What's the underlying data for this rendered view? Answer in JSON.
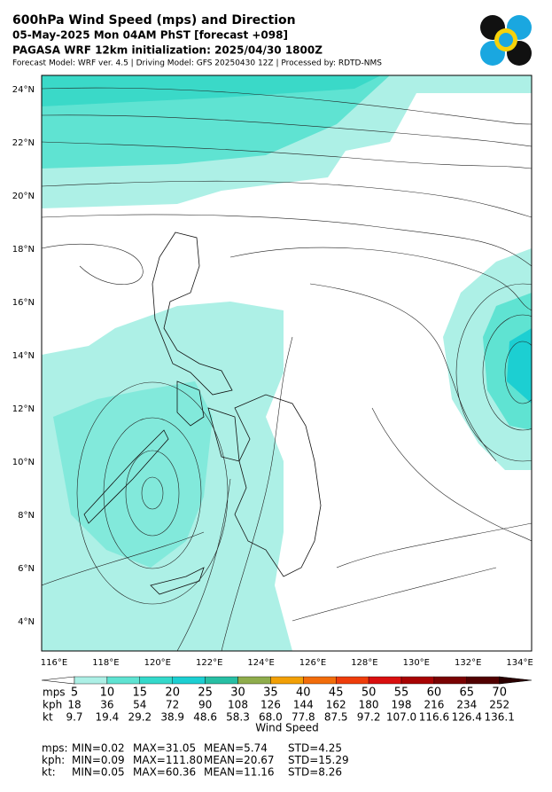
{
  "header": {
    "title": "600hPa Wind Speed (mps) and Direction",
    "valid_time": "05-May-2025 Mon 04AM PhST [forecast +098]",
    "initialization": "PAGASA WRF 12km initialization: 2025/04/30 1800Z",
    "credits": "Forecast Model: WRF ver. 4.5 | Driving Model: GFS 20250430 12Z | Processed by: RDTD-NMS"
  },
  "map": {
    "lat_labels": [
      "24°N",
      "22°N",
      "20°N",
      "18°N",
      "16°N",
      "14°N",
      "12°N",
      "10°N",
      "8°N",
      "6°N",
      "4°N"
    ],
    "lon_labels": [
      "116°E",
      "118°E",
      "120°E",
      "122°E",
      "124°E",
      "126°E",
      "128°E",
      "130°E",
      "132°E",
      "134°E"
    ]
  },
  "colorbar": {
    "title": "Wind Speed",
    "colors": [
      "#ffffff",
      "#adf0e6",
      "#5fe3d2",
      "#34d9cb",
      "#1ccfd2",
      "#27bfa4",
      "#8fad4c",
      "#f2a006",
      "#f26d0a",
      "#ef3d0b",
      "#d90f0f",
      "#a80303",
      "#7a0202",
      "#520000",
      "#2a0000"
    ],
    "rows": [
      {
        "unit": "mps",
        "ticks": [
          "5",
          "10",
          "15",
          "20",
          "25",
          "30",
          "35",
          "40",
          "45",
          "50",
          "55",
          "60",
          "65",
          "70"
        ]
      },
      {
        "unit": "kph",
        "ticks": [
          "18",
          "36",
          "54",
          "72",
          "90",
          "108",
          "126",
          "144",
          "162",
          "180",
          "198",
          "216",
          "234",
          "252"
        ]
      },
      {
        "unit": "kt",
        "ticks": [
          "9.7",
          "19.4",
          "29.2",
          "38.9",
          "48.6",
          "58.3",
          "68.0",
          "77.8",
          "87.5",
          "97.2",
          "107.0",
          "116.6",
          "126.4",
          "136.1"
        ]
      }
    ]
  },
  "stats": [
    {
      "unit": "mps:",
      "min": "MIN=0.02",
      "max": "MAX=31.05",
      "mean": "MEAN=5.74",
      "std": "STD=4.25"
    },
    {
      "unit": "kph:",
      "min": "MIN=0.09",
      "max": "MAX=111.80",
      "mean": "MEAN=20.67",
      "std": "STD=15.29"
    },
    {
      "unit": "kt:",
      "min": "MIN=0.05",
      "max": "MAX=60.36",
      "mean": "MEAN=11.16",
      "std": "STD=8.26"
    }
  ]
}
